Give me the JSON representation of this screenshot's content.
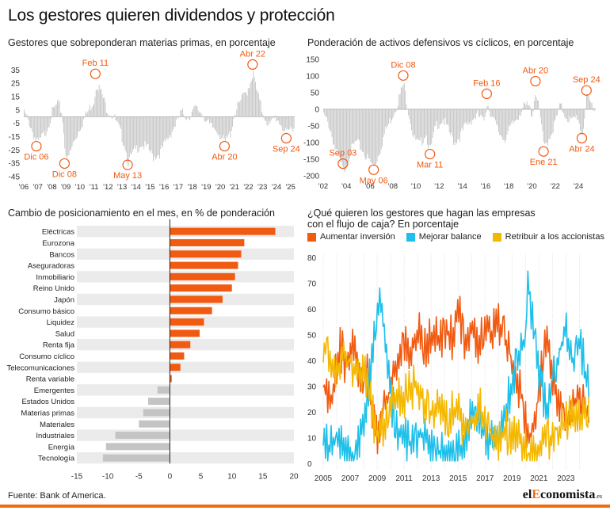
{
  "title": "Los gestores quieren dividendos y protección",
  "source": "Fuente: Bank of America.",
  "brand": {
    "pre": "el",
    "accent": "E",
    "mid": "conomista",
    "suffix": ".es"
  },
  "colors": {
    "orange": "#f15a11",
    "cyan": "#1ec0ea",
    "yellow": "#f5b800",
    "gray_bar": "#c4c4c4",
    "band": "#ebebeb"
  },
  "chart_data": [
    {
      "id": "commodities",
      "type": "bar",
      "title": "Gestores que sobreponderan materias primas, en porcentaje",
      "yticks": [
        35,
        25,
        15,
        5,
        -5,
        -15,
        -25,
        -35,
        -45
      ],
      "ylim": [
        -45,
        40
      ],
      "xticks": [
        "'06",
        "'07",
        "'08",
        "'09",
        "'10",
        "'11",
        "'12",
        "'13",
        "'14",
        "'15",
        "'16",
        "'17",
        "'18",
        "'19",
        "'20",
        "'21",
        "'22",
        "'23",
        "'24",
        "'25"
      ],
      "xlim": [
        2006.0,
        2025.3
      ],
      "series_points": [
        [
          2006.0,
          5
        ],
        [
          2006.4,
          -3
        ],
        [
          2006.8,
          -15
        ],
        [
          2007.0,
          -18
        ],
        [
          2007.5,
          -10
        ],
        [
          2008.0,
          5
        ],
        [
          2008.4,
          12
        ],
        [
          2008.7,
          5
        ],
        [
          2008.9,
          -20
        ],
        [
          2009.1,
          -31
        ],
        [
          2009.5,
          -18
        ],
        [
          2010.0,
          -5
        ],
        [
          2010.5,
          5
        ],
        [
          2011.0,
          15
        ],
        [
          2011.15,
          28
        ],
        [
          2011.5,
          20
        ],
        [
          2011.9,
          8
        ],
        [
          2012.4,
          2
        ],
        [
          2012.8,
          -8
        ],
        [
          2013.2,
          -20
        ],
        [
          2013.4,
          -32
        ],
        [
          2013.8,
          -25
        ],
        [
          2014.3,
          -18
        ],
        [
          2014.8,
          -22
        ],
        [
          2015.2,
          -28
        ],
        [
          2015.7,
          -25
        ],
        [
          2016.2,
          -15
        ],
        [
          2016.7,
          -5
        ],
        [
          2017.2,
          5
        ],
        [
          2017.7,
          2
        ],
        [
          2018.2,
          8
        ],
        [
          2018.7,
          5
        ],
        [
          2019.2,
          -5
        ],
        [
          2019.8,
          -8
        ],
        [
          2020.3,
          -18
        ],
        [
          2020.7,
          -10
        ],
        [
          2021.0,
          5
        ],
        [
          2021.5,
          15
        ],
        [
          2021.9,
          22
        ],
        [
          2022.3,
          35
        ],
        [
          2022.6,
          20
        ],
        [
          2023.0,
          5
        ],
        [
          2023.5,
          -5
        ],
        [
          2023.9,
          2
        ],
        [
          2024.3,
          -3
        ],
        [
          2024.7,
          -12
        ],
        [
          2025.1,
          -5
        ]
      ],
      "annotations": [
        {
          "label": "Dic 06",
          "x": 2006.9,
          "y": -18,
          "pos": "below"
        },
        {
          "label": "Dic 08",
          "x": 2008.9,
          "y": -31,
          "pos": "below"
        },
        {
          "label": "Feb 11",
          "x": 2011.1,
          "y": 28,
          "pos": "above"
        },
        {
          "label": "May 13",
          "x": 2013.4,
          "y": -32,
          "pos": "below"
        },
        {
          "label": "Abr 20",
          "x": 2020.3,
          "y": -18,
          "pos": "below"
        },
        {
          "label": "Abr 22",
          "x": 2022.3,
          "y": 35,
          "pos": "above"
        },
        {
          "label": "Sep 24",
          "x": 2024.7,
          "y": -12,
          "pos": "below"
        }
      ]
    },
    {
      "id": "defensive",
      "type": "bar",
      "title": "Ponderación de activos defensivos vs cíclicos, en porcentaje",
      "yticks": [
        150,
        100,
        50,
        0,
        -50,
        -100,
        -150,
        -200
      ],
      "ylim": [
        -200,
        150
      ],
      "xticks": [
        "'02",
        "'04",
        "'06",
        "'08",
        "'10",
        "'12",
        "'14",
        "'16",
        "'18",
        "'20",
        "'22",
        "'24"
      ],
      "xlim": [
        2002.0,
        2025.5
      ],
      "series_points": [
        [
          2002.0,
          -10
        ],
        [
          2002.5,
          -40
        ],
        [
          2003.0,
          -110
        ],
        [
          2003.7,
          -180
        ],
        [
          2004.3,
          -120
        ],
        [
          2004.8,
          -90
        ],
        [
          2005.3,
          -110
        ],
        [
          2005.8,
          -140
        ],
        [
          2006.35,
          -165
        ],
        [
          2006.8,
          -120
        ],
        [
          2007.3,
          -60
        ],
        [
          2007.8,
          -20
        ],
        [
          2008.3,
          20
        ],
        [
          2008.9,
          85
        ],
        [
          2009.3,
          10
        ],
        [
          2009.8,
          -80
        ],
        [
          2010.3,
          -100
        ],
        [
          2010.8,
          -60
        ],
        [
          2011.2,
          -118
        ],
        [
          2011.7,
          -40
        ],
        [
          2012.3,
          -20
        ],
        [
          2012.8,
          -60
        ],
        [
          2013.3,
          -90
        ],
        [
          2013.8,
          -70
        ],
        [
          2014.3,
          -40
        ],
        [
          2014.8,
          -20
        ],
        [
          2015.3,
          -10
        ],
        [
          2015.8,
          -30
        ],
        [
          2016.1,
          30
        ],
        [
          2016.6,
          -20
        ],
        [
          2017.1,
          -60
        ],
        [
          2017.6,
          -80
        ],
        [
          2018.1,
          -50
        ],
        [
          2018.6,
          -20
        ],
        [
          2019.1,
          10
        ],
        [
          2019.6,
          20
        ],
        [
          2020.0,
          -5
        ],
        [
          2020.3,
          68
        ],
        [
          2020.8,
          -40
        ],
        [
          2021.0,
          -110
        ],
        [
          2021.4,
          -80
        ],
        [
          2021.9,
          -40
        ],
        [
          2022.4,
          20
        ],
        [
          2022.9,
          -10
        ],
        [
          2023.4,
          -30
        ],
        [
          2023.9,
          -10
        ],
        [
          2024.3,
          -70
        ],
        [
          2024.7,
          40
        ],
        [
          2025.2,
          20
        ]
      ],
      "annotations": [
        {
          "label": "Sep 03",
          "x": 2003.7,
          "y": -180,
          "pos": "above"
        },
        {
          "label": "May 06",
          "x": 2006.35,
          "y": -165,
          "pos": "below"
        },
        {
          "label": "Dic 08",
          "x": 2008.9,
          "y": 85,
          "pos": "above"
        },
        {
          "label": "Mar 11",
          "x": 2011.2,
          "y": -118,
          "pos": "below"
        },
        {
          "label": "Feb 16",
          "x": 2016.1,
          "y": 30,
          "pos": "above"
        },
        {
          "label": "Abr 20",
          "x": 2020.3,
          "y": 68,
          "pos": "above"
        },
        {
          "label": "Ene 21",
          "x": 2021.0,
          "y": -110,
          "pos": "below"
        },
        {
          "label": "Sep 24",
          "x": 2024.7,
          "y": 40,
          "pos": "above"
        },
        {
          "label": "Abr 24",
          "x": 2024.3,
          "y": -70,
          "pos": "below"
        }
      ]
    },
    {
      "id": "positioning",
      "type": "bar",
      "orientation": "horizontal",
      "title": "Cambio de posicionamiento en el mes, en % de ponderación",
      "categories": [
        "Eléctricas",
        "Eurozona",
        "Bancos",
        "Aseguradoras",
        "Inmobiliario",
        "Reino Unido",
        "Japón",
        "Consumo básico",
        "Liquidez",
        "Salud",
        "Renta fija",
        "Consumo cíclico",
        "Telecomunicaciones",
        "Renta variable",
        "Emergentes",
        "Estados Unidos",
        "Materias primas",
        "Materiales",
        "Industriales",
        "Energía",
        "Tecnología"
      ],
      "values": [
        17,
        12,
        11.5,
        11,
        10.5,
        10,
        8.5,
        6.8,
        5.5,
        4.8,
        3.3,
        2.3,
        1.7,
        0.3,
        -2,
        -3.5,
        -4.3,
        -5,
        -8.8,
        -10.3,
        -10.8
      ],
      "xticks": [
        -15,
        -10,
        -5,
        0,
        5,
        10,
        15,
        20
      ],
      "xlim": [
        -15,
        20
      ]
    },
    {
      "id": "cashflow",
      "type": "line",
      "title_lines": [
        "¿Qué quieren los gestores que hagan las empresas",
        "con el flujo de caja? En porcentaje"
      ],
      "yticks": [
        80,
        70,
        60,
        50,
        40,
        30,
        20,
        10,
        0
      ],
      "ylim": [
        0,
        80
      ],
      "xticks": [
        "2005",
        "2007",
        "2009",
        "2011",
        "2013",
        "2015",
        "2017",
        "2019",
        "2021",
        "2023"
      ],
      "xlim": [
        2005.0,
        2024.8
      ],
      "series": [
        {
          "name": "Aumentar inversión",
          "color": "#f15a11",
          "points": [
            [
              2005.0,
              34
            ],
            [
              2005.6,
              30
            ],
            [
              2006.2,
              50
            ],
            [
              2006.8,
              42
            ],
            [
              2007.3,
              53
            ],
            [
              2007.8,
              35
            ],
            [
              2008.3,
              45
            ],
            [
              2008.7,
              20
            ],
            [
              2009.1,
              13
            ],
            [
              2009.6,
              27
            ],
            [
              2010.1,
              36
            ],
            [
              2010.6,
              44
            ],
            [
              2011.1,
              52
            ],
            [
              2011.6,
              48
            ],
            [
              2012.1,
              55
            ],
            [
              2012.6,
              50
            ],
            [
              2013.1,
              55
            ],
            [
              2013.6,
              52
            ],
            [
              2014.1,
              57
            ],
            [
              2014.6,
              52
            ],
            [
              2015.0,
              64
            ],
            [
              2015.5,
              53
            ],
            [
              2016.0,
              57
            ],
            [
              2016.5,
              50
            ],
            [
              2017.0,
              60
            ],
            [
              2017.5,
              55
            ],
            [
              2018.0,
              59
            ],
            [
              2018.5,
              52
            ],
            [
              2019.0,
              45
            ],
            [
              2019.5,
              35
            ],
            [
              2020.0,
              20
            ],
            [
              2020.3,
              12
            ],
            [
              2020.8,
              25
            ],
            [
              2021.2,
              40
            ],
            [
              2021.6,
              55
            ],
            [
              2022.0,
              40
            ],
            [
              2022.5,
              25
            ],
            [
              2023.0,
              20
            ],
            [
              2023.5,
              26
            ],
            [
              2024.0,
              30
            ],
            [
              2024.5,
              24
            ],
            [
              2024.7,
              28
            ]
          ]
        },
        {
          "name": "Mejorar balance",
          "color": "#1ec0ea",
          "points": [
            [
              2005.0,
              12
            ],
            [
              2005.5,
              10
            ],
            [
              2006.0,
              16
            ],
            [
              2006.5,
              10
            ],
            [
              2007.0,
              5
            ],
            [
              2007.5,
              9
            ],
            [
              2008.0,
              20
            ],
            [
              2008.5,
              42
            ],
            [
              2009.0,
              60
            ],
            [
              2009.25,
              70
            ],
            [
              2009.6,
              50
            ],
            [
              2010.0,
              30
            ],
            [
              2010.5,
              18
            ],
            [
              2011.0,
              16
            ],
            [
              2011.5,
              10
            ],
            [
              2012.0,
              14
            ],
            [
              2012.5,
              17
            ],
            [
              2013.0,
              12
            ],
            [
              2013.5,
              10
            ],
            [
              2014.0,
              8
            ],
            [
              2014.5,
              10
            ],
            [
              2015.0,
              8
            ],
            [
              2015.5,
              11
            ],
            [
              2016.0,
              25
            ],
            [
              2016.5,
              20
            ],
            [
              2017.0,
              16
            ],
            [
              2017.5,
              14
            ],
            [
              2018.0,
              17
            ],
            [
              2018.5,
              25
            ],
            [
              2019.0,
              35
            ],
            [
              2019.5,
              45
            ],
            [
              2020.0,
              55
            ],
            [
              2020.2,
              78
            ],
            [
              2020.6,
              55
            ],
            [
              2021.0,
              40
            ],
            [
              2021.5,
              25
            ],
            [
              2022.0,
              38
            ],
            [
              2022.5,
              48
            ],
            [
              2023.0,
              55
            ],
            [
              2023.5,
              45
            ],
            [
              2024.0,
              52
            ],
            [
              2024.5,
              38
            ],
            [
              2024.7,
              32
            ]
          ]
        },
        {
          "name": "Retribuir a los accionistas",
          "color": "#f5b800",
          "points": [
            [
              2005.0,
              48
            ],
            [
              2005.5,
              45
            ],
            [
              2006.0,
              40
            ],
            [
              2006.5,
              46
            ],
            [
              2007.0,
              44
            ],
            [
              2007.5,
              39
            ],
            [
              2008.0,
              40
            ],
            [
              2008.5,
              28
            ],
            [
              2009.0,
              14
            ],
            [
              2009.5,
              18
            ],
            [
              2010.0,
              27
            ],
            [
              2010.5,
              29
            ],
            [
              2011.0,
              30
            ],
            [
              2011.5,
              33
            ],
            [
              2012.0,
              35
            ],
            [
              2012.5,
              28
            ],
            [
              2013.0,
              24
            ],
            [
              2013.5,
              25
            ],
            [
              2014.0,
              23
            ],
            [
              2014.5,
              24
            ],
            [
              2015.0,
              25
            ],
            [
              2015.5,
              18
            ],
            [
              2016.0,
              20
            ],
            [
              2016.5,
              26
            ],
            [
              2017.0,
              22
            ],
            [
              2017.5,
              16
            ],
            [
              2018.0,
              14
            ],
            [
              2018.5,
              17
            ],
            [
              2019.0,
              15
            ],
            [
              2019.5,
              14
            ],
            [
              2020.0,
              11
            ],
            [
              2020.3,
              8
            ],
            [
              2020.8,
              10
            ],
            [
              2021.3,
              12
            ],
            [
              2021.8,
              14
            ],
            [
              2022.3,
              18
            ],
            [
              2022.8,
              20
            ],
            [
              2023.3,
              22
            ],
            [
              2023.8,
              20
            ],
            [
              2024.3,
              24
            ],
            [
              2024.7,
              26
            ]
          ]
        }
      ]
    }
  ]
}
